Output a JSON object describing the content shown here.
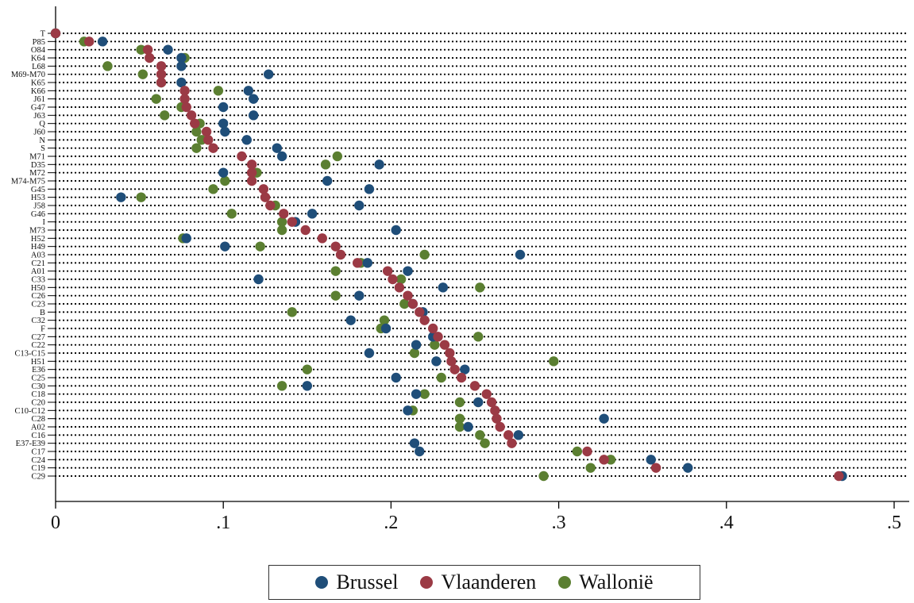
{
  "chart_data": {
    "type": "scatter",
    "title": "",
    "xlabel": "",
    "ylabel": "",
    "xlim": [
      0,
      0.5
    ],
    "x_ticks": [
      0,
      0.1,
      0.2,
      0.3,
      0.4,
      0.5
    ],
    "x_tick_labels": [
      "0",
      ".1",
      ".2",
      ".3",
      ".4",
      ".5"
    ],
    "grid": "dotted-horizontal",
    "legend": "bottom",
    "categories": [
      "T",
      "P85",
      "O84",
      "K64",
      "L68",
      "M69-M70",
      "K65",
      "K66",
      "J61",
      "G47",
      "J63",
      "Q",
      "J60",
      "N",
      "S",
      "M71",
      "D35",
      "M72",
      "M74-M75",
      "G45",
      "H53",
      "J58",
      "G46",
      "I",
      "M73",
      "H52",
      "H49",
      "A03",
      "C21",
      "A01",
      "C33",
      "H50",
      "C26",
      "C23",
      "B",
      "C32",
      "F",
      "C27",
      "C22",
      "C13-C15",
      "H51",
      "E36",
      "C25",
      "C30",
      "C18",
      "C20",
      "C10-C12",
      "C28",
      "A02",
      "C16",
      "E37-E39",
      "C17",
      "C24",
      "C19",
      "C29"
    ],
    "series": [
      {
        "name": "Brussel",
        "color": "#1f4e79",
        "values": [
          0,
          0.028,
          0.067,
          0.075,
          0.075,
          0.127,
          0.075,
          0.115,
          0.118,
          0.1,
          0.118,
          0.1,
          0.101,
          0.114,
          0.132,
          0.135,
          0.193,
          0.1,
          0.162,
          0.187,
          0.039,
          0.181,
          0.153,
          0.143,
          0.203,
          0.078,
          0.101,
          0.277,
          0.186,
          0.21,
          0.121,
          0.231,
          0.181,
          0.213,
          0.219,
          0.176,
          0.197,
          0.225,
          0.215,
          0.187,
          0.227,
          0.244,
          0.203,
          0.15,
          0.215,
          0.252,
          0.21,
          0.327,
          0.246,
          0.276,
          0.214,
          0.217,
          0.355,
          0.377,
          0.469
        ]
      },
      {
        "name": "Vlaanderen",
        "color": "#9b3a45",
        "values": [
          0,
          0.02,
          0.055,
          0.056,
          0.063,
          0.063,
          0.063,
          0.077,
          0.077,
          0.078,
          0.081,
          0.083,
          0.09,
          0.091,
          0.094,
          0.111,
          0.117,
          0.117,
          0.117,
          0.124,
          0.125,
          0.128,
          0.136,
          0.141,
          0.149,
          0.159,
          0.167,
          0.17,
          0.18,
          0.198,
          0.201,
          0.205,
          0.21,
          0.213,
          0.217,
          0.22,
          0.225,
          0.228,
          0.232,
          0.235,
          0.236,
          0.238,
          0.242,
          0.25,
          0.257,
          0.26,
          0.262,
          0.263,
          0.265,
          0.27,
          0.272,
          0.317,
          0.327,
          0.358,
          0.467
        ]
      },
      {
        "name": "Wallonië",
        "color": "#5b7f31",
        "values": [
          0,
          0.017,
          0.051,
          0.077,
          0.031,
          0.052,
          0.063,
          0.097,
          0.06,
          0.075,
          0.065,
          0.086,
          0.084,
          0.087,
          0.084,
          0.168,
          0.161,
          0.12,
          0.101,
          0.094,
          0.051,
          0.131,
          0.105,
          0.135,
          0.135,
          0.076,
          0.122,
          0.22,
          0.182,
          0.167,
          0.206,
          0.253,
          0.167,
          0.208,
          0.141,
          0.196,
          0.194,
          0.252,
          0.226,
          0.214,
          0.297,
          0.15,
          0.23,
          0.135,
          0.22,
          0.241,
          0.213,
          0.241,
          0.241,
          0.253,
          0.256,
          0.311,
          0.331,
          0.319,
          0.291
        ]
      }
    ]
  },
  "legend": {
    "items": [
      {
        "label": "Brussel",
        "color": "#1f4e79"
      },
      {
        "label": "Vlaanderen",
        "color": "#9b3a45"
      },
      {
        "label": "Wallonië",
        "color": "#5b7f31"
      }
    ]
  }
}
